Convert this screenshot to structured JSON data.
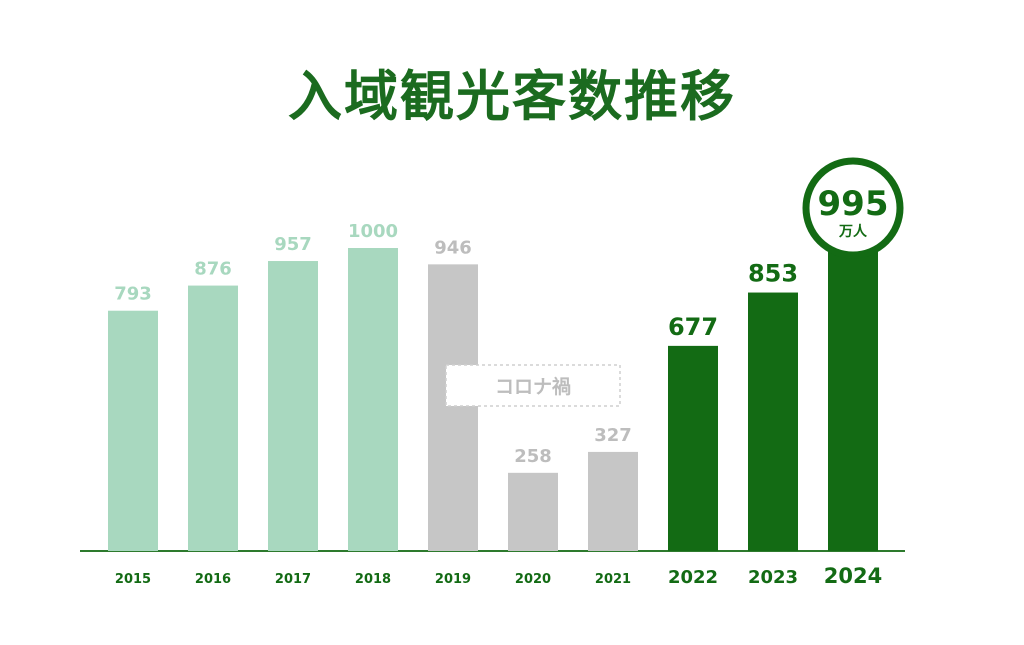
{
  "colors": {
    "pre_covid": "#a8d8bf",
    "covid": "#c6c6c6",
    "post_covid": "#136b14",
    "axis": "#2d7a2d",
    "label_pre": "#a8d8bf",
    "label_covid": "#bdbdbd",
    "label_post": "#136b14"
  },
  "chart_data": {
    "type": "bar",
    "title": "入域観光客数推移",
    "categories": [
      "2015",
      "2016",
      "2017",
      "2018",
      "2019",
      "2020",
      "2021",
      "2022",
      "2023",
      "2024"
    ],
    "values": [
      793,
      876,
      957,
      1000,
      946,
      258,
      327,
      677,
      853,
      995
    ],
    "groups": [
      "pre",
      "pre",
      "pre",
      "pre",
      "covid",
      "covid",
      "covid",
      "post",
      "post",
      "post"
    ],
    "ylim": [
      0,
      1000
    ],
    "grid": false,
    "annotations": {
      "covid_label": "コロナ禍",
      "highlight_value": "995",
      "highlight_unit": "万人"
    }
  }
}
